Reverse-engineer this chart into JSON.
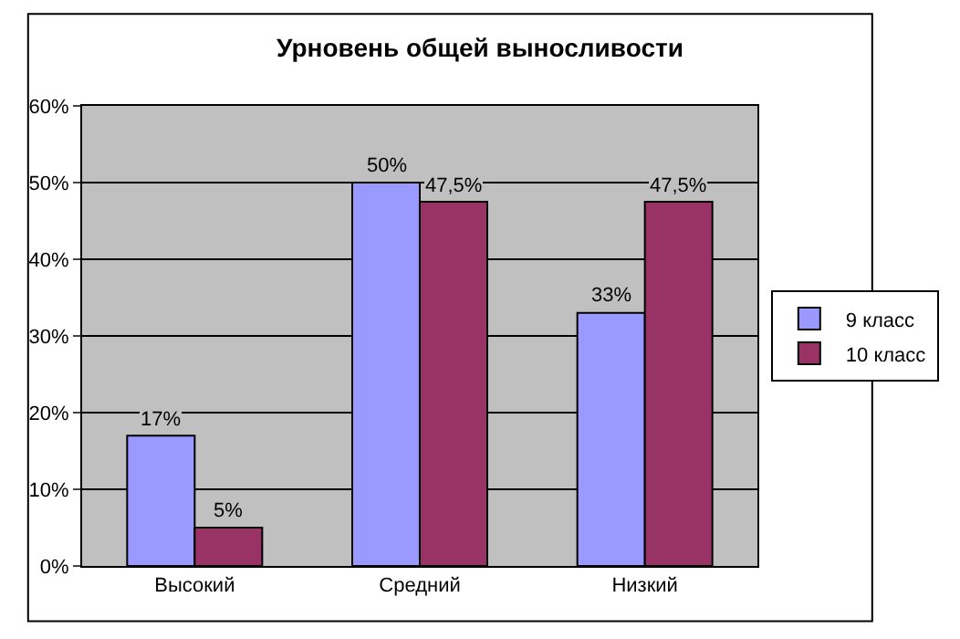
{
  "chart_data": {
    "type": "bar",
    "title": "Урновень общей выносливости",
    "categories": [
      "Высокий",
      "Средний",
      "Низкий"
    ],
    "series": [
      {
        "name": "9 класс",
        "color": "#9999ff",
        "values": [
          17,
          50,
          33
        ],
        "value_labels": [
          "17%",
          "50%",
          "33%"
        ]
      },
      {
        "name": "10 класс",
        "color": "#993366",
        "values": [
          5,
          47.5,
          47.5
        ],
        "value_labels": [
          "5%",
          "47,5%",
          "47,5%"
        ]
      }
    ],
    "ylim": [
      0,
      60
    ],
    "yticks": [
      {
        "value": 0,
        "label": "0%"
      },
      {
        "value": 10,
        "label": "10%"
      },
      {
        "value": 20,
        "label": "20%"
      },
      {
        "value": 30,
        "label": "30%"
      },
      {
        "value": 40,
        "label": "40%"
      },
      {
        "value": 50,
        "label": "50%"
      },
      {
        "value": 60,
        "label": "60%"
      }
    ],
    "grid": "y",
    "legend": "right"
  }
}
